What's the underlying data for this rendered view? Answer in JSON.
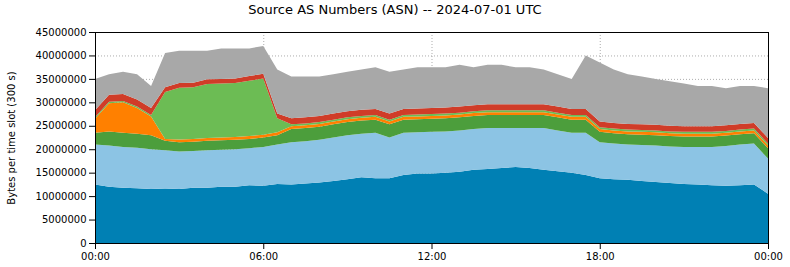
{
  "chart_data": {
    "type": "area",
    "title": "Source AS Numbers (ASN) -- 2024-07-01 UTC",
    "y_label": "Bytes per time slot (300 s)",
    "stacked": true,
    "grid": true,
    "x": [
      0,
      0.5,
      1,
      1.5,
      2,
      2.5,
      3,
      3.5,
      4,
      4.5,
      5,
      5.5,
      6,
      6.5,
      7,
      7.5,
      8,
      8.5,
      9,
      9.5,
      10,
      10.5,
      11,
      11.5,
      12,
      12.5,
      13,
      13.5,
      14,
      14.5,
      15,
      15.5,
      16,
      16.5,
      17,
      17.5,
      18,
      18.5,
      19,
      19.5,
      20,
      20.5,
      21,
      21.5,
      22,
      22.5,
      23,
      23.5,
      24
    ],
    "xlim": [
      0,
      24
    ],
    "xticks": [
      {
        "value": 0,
        "label": "00:00"
      },
      {
        "value": 6,
        "label": "06:00"
      },
      {
        "value": 12,
        "label": "12:00"
      },
      {
        "value": 18,
        "label": "18:00"
      },
      {
        "value": 24,
        "label": "00:00"
      }
    ],
    "ylim": [
      0,
      45000000
    ],
    "yticks": [
      0,
      5000000,
      10000000,
      15000000,
      20000000,
      25000000,
      30000000,
      35000000,
      40000000,
      45000000
    ],
    "series": [
      {
        "color": "#0080b4",
        "values": [
          12500000,
          12000000,
          11800000,
          11700000,
          11500000,
          11600000,
          11500000,
          11800000,
          11800000,
          12000000,
          12000000,
          12300000,
          12200000,
          12600000,
          12500000,
          12700000,
          12900000,
          13200000,
          13600000,
          14000000,
          13800000,
          13800000,
          14500000,
          14800000,
          14800000,
          15000000,
          15200000,
          15600000,
          15800000,
          16000000,
          16200000,
          16000000,
          15600000,
          15300000,
          15000000,
          14500000,
          13800000,
          13600000,
          13500000,
          13200000,
          13000000,
          12800000,
          12600000,
          12500000,
          12300000,
          12200000,
          12300000,
          12500000,
          10500000
        ]
      },
      {
        "color": "#8cc4e4",
        "values": [
          8500000,
          8800000,
          8700000,
          8600000,
          8500000,
          8200000,
          8000000,
          7800000,
          8000000,
          7900000,
          8000000,
          7900000,
          8300000,
          8400000,
          9000000,
          9000000,
          9100000,
          9300000,
          9400000,
          9300000,
          9700000,
          8700000,
          9000000,
          8800000,
          8900000,
          8800000,
          8800000,
          8700000,
          8700000,
          8500000,
          8300000,
          8500000,
          8900000,
          8700000,
          8500000,
          9000000,
          7700000,
          7600000,
          7500000,
          7700000,
          7800000,
          7800000,
          7900000,
          8000000,
          8200000,
          8500000,
          8700000,
          8700000,
          7500000
        ]
      },
      {
        "color": "#4c9e3c",
        "values": [
          2500000,
          3000000,
          3000000,
          3000000,
          3000000,
          2000000,
          2000000,
          2000000,
          2000000,
          2000000,
          2000000,
          2000000,
          2000000,
          2000000,
          2800000,
          2800000,
          2800000,
          2800000,
          2800000,
          2800000,
          2800000,
          2800000,
          2800000,
          2800000,
          2800000,
          2800000,
          2800000,
          2800000,
          2800000,
          2800000,
          2800000,
          2800000,
          2800000,
          2800000,
          2800000,
          2800000,
          2200000,
          2200000,
          2200000,
          2200000,
          2200000,
          2200000,
          2200000,
          2200000,
          2200000,
          2200000,
          2200000,
          2200000,
          2200000
        ]
      },
      {
        "color": "#ff8000",
        "values": [
          3000000,
          6000000,
          6500000,
          5500000,
          4000000,
          400000,
          600000,
          600000,
          600000,
          600000,
          600000,
          600000,
          600000,
          600000,
          600000,
          600000,
          600000,
          600000,
          600000,
          600000,
          600000,
          600000,
          600000,
          600000,
          600000,
          600000,
          600000,
          600000,
          600000,
          600000,
          600000,
          600000,
          600000,
          600000,
          600000,
          600000,
          600000,
          600000,
          600000,
          600000,
          600000,
          600000,
          600000,
          600000,
          600000,
          600000,
          600000,
          600000,
          600000
        ]
      },
      {
        "color": "#6cbc54",
        "values": [
          300000,
          300000,
          300000,
          300000,
          300000,
          10000000,
          11000000,
          11000000,
          11500000,
          11500000,
          11500000,
          11800000,
          12000000,
          3000000,
          400000,
          400000,
          400000,
          400000,
          400000,
          400000,
          400000,
          400000,
          400000,
          400000,
          400000,
          400000,
          400000,
          400000,
          400000,
          400000,
          400000,
          400000,
          400000,
          400000,
          400000,
          400000,
          400000,
          400000,
          400000,
          400000,
          400000,
          400000,
          400000,
          400000,
          400000,
          400000,
          400000,
          400000,
          400000
        ]
      },
      {
        "color": "#d03c28",
        "values": [
          1500000,
          1500000,
          1500000,
          1500000,
          1500000,
          1000000,
          1000000,
          1000000,
          1000000,
          1000000,
          1000000,
          1000000,
          1000000,
          1000000,
          1300000,
          1300000,
          1300000,
          1300000,
          1300000,
          1300000,
          1300000,
          1300000,
          1300000,
          1300000,
          1300000,
          1300000,
          1300000,
          1300000,
          1300000,
          1300000,
          1300000,
          1300000,
          1300000,
          1300000,
          1300000,
          1300000,
          1200000,
          1200000,
          1200000,
          1200000,
          1200000,
          1200000,
          1200000,
          1200000,
          1200000,
          1200000,
          1200000,
          1200000,
          1200000
        ]
      },
      {
        "color": "#a8a8a8",
        "values": [
          6700000,
          4400000,
          4700000,
          5400000,
          4700000,
          7300000,
          6900000,
          6800000,
          6100000,
          6500000,
          6400000,
          5900000,
          5900000,
          9400000,
          8900000,
          8700000,
          8400000,
          8400000,
          8400000,
          8600000,
          8900000,
          8900000,
          8400000,
          8800000,
          8700000,
          8600000,
          8900000,
          8100000,
          8400000,
          8400000,
          7900000,
          7900000,
          7400000,
          6900000,
          6400000,
          11400000,
          12600000,
          11400000,
          10600000,
          10200000,
          9800000,
          9500000,
          9100000,
          8600000,
          8600000,
          7900000,
          8100000,
          7900000,
          10600000
        ]
      }
    ]
  }
}
